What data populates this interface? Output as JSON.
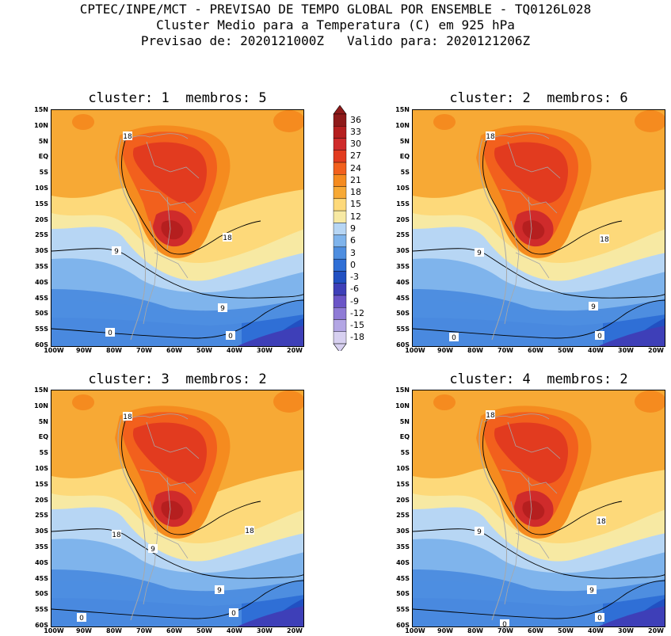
{
  "header": {
    "line1": "CPTEC/INPE/MCT - PREVISAO DE TEMPO GLOBAL POR ENSEMBLE - TQ0126L028",
    "line2": "Cluster Medio para a Temperatura (C) em 925 hPa",
    "line3": "Previsao de: 2020121000Z   Valido para: 2020121206Z"
  },
  "panels": [
    {
      "title": "cluster: 1  membros: 5"
    },
    {
      "title": "cluster: 2  membros: 6"
    },
    {
      "title": "cluster: 3  membros: 2"
    },
    {
      "title": "cluster: 4  membros: 2"
    }
  ],
  "lat_labels": [
    "15N",
    "10N",
    "5N",
    "EQ",
    "5S",
    "10S",
    "15S",
    "20S",
    "25S",
    "30S",
    "35S",
    "40S",
    "45S",
    "50S",
    "55S",
    "60S"
  ],
  "lon_labels": [
    "100W",
    "90W",
    "80W",
    "70W",
    "60W",
    "50W",
    "40W",
    "30W",
    "20W"
  ],
  "colorbar": {
    "labels": [
      "36",
      "33",
      "30",
      "27",
      "24",
      "21",
      "18",
      "15",
      "12",
      "9",
      "6",
      "3",
      "0",
      "-3",
      "-6",
      "-9",
      "-12",
      "-15",
      "-18"
    ],
    "colors": [
      "#8e1a1a",
      "#b51f1f",
      "#cf2b2b",
      "#e23b1f",
      "#f2601d",
      "#f58b1f",
      "#f7a935",
      "#fdd97a",
      "#f7e9a3",
      "#b7d6f4",
      "#7fb4ec",
      "#4e8ee0",
      "#2f6fd6",
      "#2150c2",
      "#3e3fb8",
      "#6b55c7",
      "#8f7bd6",
      "#b3a6e4",
      "#d7d0f0"
    ]
  },
  "contour_labels": {
    "p1": [
      "18",
      "18",
      "9",
      "9",
      "0",
      "0"
    ],
    "p2": [
      "18",
      "18",
      "9",
      "9",
      "0",
      "0"
    ],
    "p3": [
      "18",
      "18",
      "18",
      "9",
      "9",
      "0",
      "0"
    ],
    "p4": [
      "18",
      "18",
      "9",
      "9",
      "0",
      "0"
    ]
  }
}
